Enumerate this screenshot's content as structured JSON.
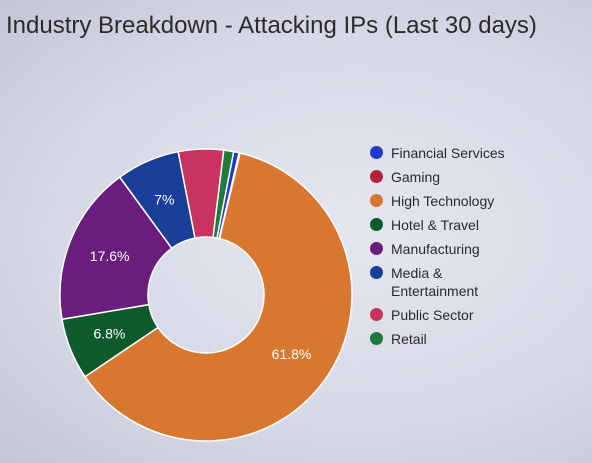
{
  "chart_data": {
    "type": "pie",
    "title": "Industry Breakdown - Attacking IPs (Last 30 days)",
    "legend_position": "right",
    "categories": [
      "Financial Services",
      "Gaming",
      "High Technology",
      "Hotel & Travel",
      "Manufacturing",
      "Media & Entertainment",
      "Public Sector",
      "Retail"
    ],
    "values": [
      0.6,
      0.1,
      61.8,
      6.8,
      17.6,
      7.0,
      5.0,
      1.1
    ],
    "data_labels": [
      "",
      "",
      "61.8%",
      "6.8%",
      "17.6%",
      "7%",
      "",
      ""
    ],
    "colors": [
      "#1f3bc8",
      "#b3223a",
      "#d8772f",
      "#0f5a2c",
      "#6a1d7c",
      "#1a3f98",
      "#c8335f",
      "#1f7a3c"
    ]
  }
}
